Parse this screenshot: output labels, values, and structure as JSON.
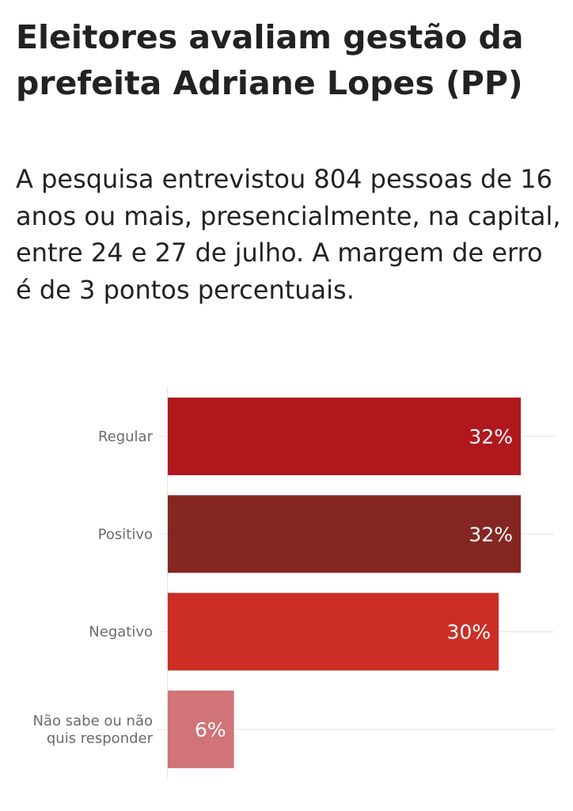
{
  "header": {
    "title": "Eleitores avaliam gestão da prefeita Adriane Lopes (PP)",
    "subtitle": "A pesquisa entrevistou 804 pessoas de 16 anos ou mais, presencialmente, na capital, entre 24 e 27 de julho. A margem de erro é de 3 pontos percentuais."
  },
  "chart_data": {
    "type": "bar",
    "orientation": "horizontal",
    "title": "Eleitores avaliam gestão da prefeita Adriane Lopes (PP)",
    "subtitle": "A pesquisa entrevistou 804 pessoas de 16 anos ou mais, presencialmente, na capital, entre 24 e 27 de julho. A margem de erro é de 3 pontos percentuais.",
    "categories": [
      [
        "Regular"
      ],
      [
        "Positivo"
      ],
      [
        "Negativo"
      ],
      [
        "Não sabe ou não",
        "quis responder"
      ]
    ],
    "values": [
      32,
      32,
      30,
      6
    ],
    "value_labels": [
      "32%",
      "32%",
      "30%",
      "6%"
    ],
    "colors": [
      "#b0181d",
      "#852622",
      "#cc2e26",
      "#d07477"
    ],
    "xlabel": "",
    "ylabel": "",
    "xlim": [
      0,
      32
    ],
    "grid": true,
    "legend": "none"
  }
}
